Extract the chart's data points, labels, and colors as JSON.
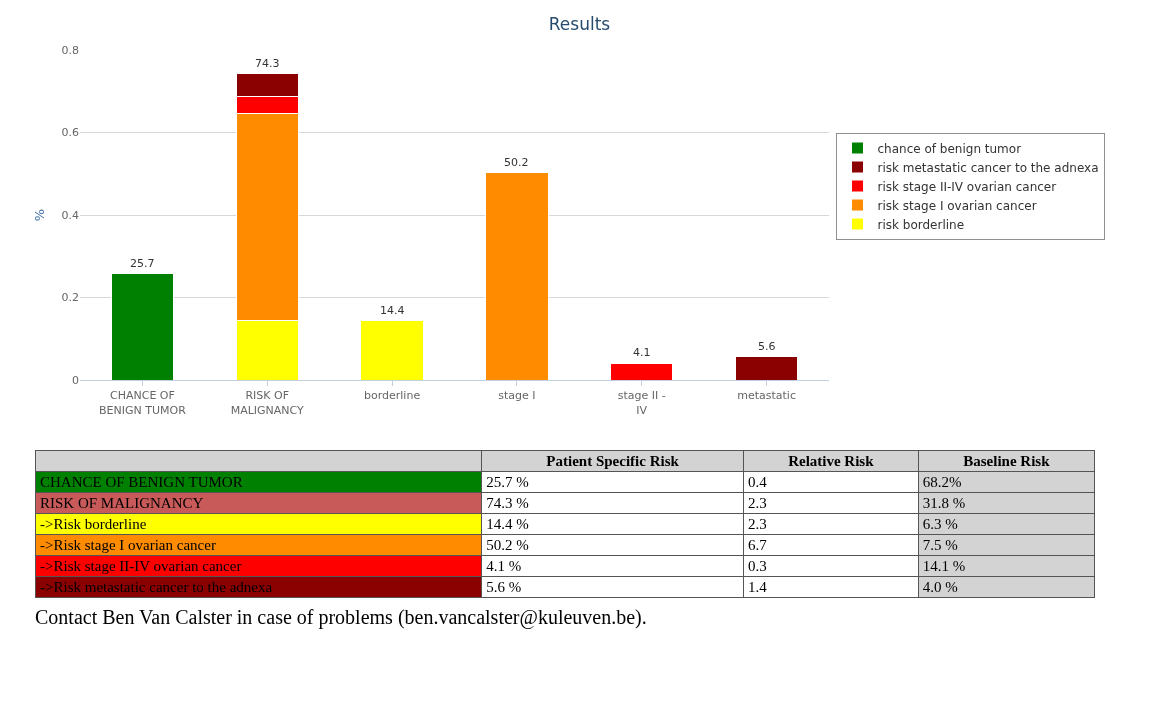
{
  "chart_data": [
    {
      "type": "bar",
      "title": "Results",
      "ylabel": "%",
      "stacked": true,
      "categories": [
        "CHANCE OF BENIGN TUMOR",
        "RISK OF MALIGNANCY",
        "borderline",
        "stage I",
        "stage II - IV",
        "metastatic"
      ],
      "series": [
        {
          "name": "chance of benign tumor",
          "color": "#008000",
          "values": [
            0.257,
            null,
            null,
            null,
            null,
            null
          ]
        },
        {
          "name": "risk borderline",
          "color": "#ffff00",
          "values": [
            null,
            0.144,
            0.144,
            null,
            null,
            null
          ]
        },
        {
          "name": "risk stage I ovarian cancer",
          "color": "#ff8c00",
          "values": [
            null,
            0.502,
            null,
            0.502,
            null,
            null
          ]
        },
        {
          "name": "risk stage II-IV ovarian cancer",
          "color": "#ff0000",
          "values": [
            null,
            0.041,
            null,
            null,
            0.041,
            null
          ]
        },
        {
          "name": "risk metastatic cancer to the adnexa",
          "color": "#8b0000",
          "values": [
            null,
            0.056,
            null,
            null,
            null,
            0.056
          ]
        }
      ],
      "totals": [
        "25.7",
        "74.3",
        "14.4",
        "50.2",
        "4.1",
        "5.6"
      ],
      "ylim": [
        0,
        0.8
      ],
      "yticks": [
        0,
        0.2,
        0.4,
        0.6,
        0.8
      ],
      "grid": "y",
      "legend": "right"
    },
    {
      "type": "other",
      "categories": [
        "CHANCE OF BENIGN TUMOR",
        "RISK OF MALIGNANCY",
        "->Risk borderline",
        "->Risk stage I ovarian cancer",
        "->Risk stage II-IV ovarian cancer",
        "->Risk metastatic cancer to the adnexa"
      ],
      "colors": [
        "#008000",
        "#c85a5a",
        "#ffff00",
        "#ff8c00",
        "#ff0000",
        "#8b0000"
      ],
      "series": [
        {
          "name": "Patient Specific Risk",
          "color": "#ffffff",
          "values": [
            25.7,
            74.3,
            14.4,
            50.2,
            4.1,
            5.6
          ],
          "value_labels": [
            "25.7 %",
            "74.3 %",
            "14.4 %",
            "50.2 %",
            "4.1 %",
            "5.6 %"
          ]
        },
        {
          "name": "Relative Risk",
          "color": "#ffffff",
          "values": [
            0.4,
            2.3,
            2.3,
            6.7,
            0.3,
            1.4
          ],
          "value_labels": [
            "0.4",
            "2.3",
            "2.3",
            "6.7",
            "0.3",
            "1.4"
          ]
        },
        {
          "name": "Baseline Risk",
          "color": "#d3d3d3",
          "values": [
            68.2,
            31.8,
            6.3,
            7.5,
            14.1,
            4.0
          ],
          "value_labels": [
            "68.2%",
            "31.8 %",
            "6.3 %",
            "7.5 %",
            "14.1 %",
            "4.0 %"
          ]
        }
      ],
      "annotations": [
        "Contact Ben Van Calster in case of problems (ben.vancalster@kuleuven.be)."
      ]
    }
  ]
}
